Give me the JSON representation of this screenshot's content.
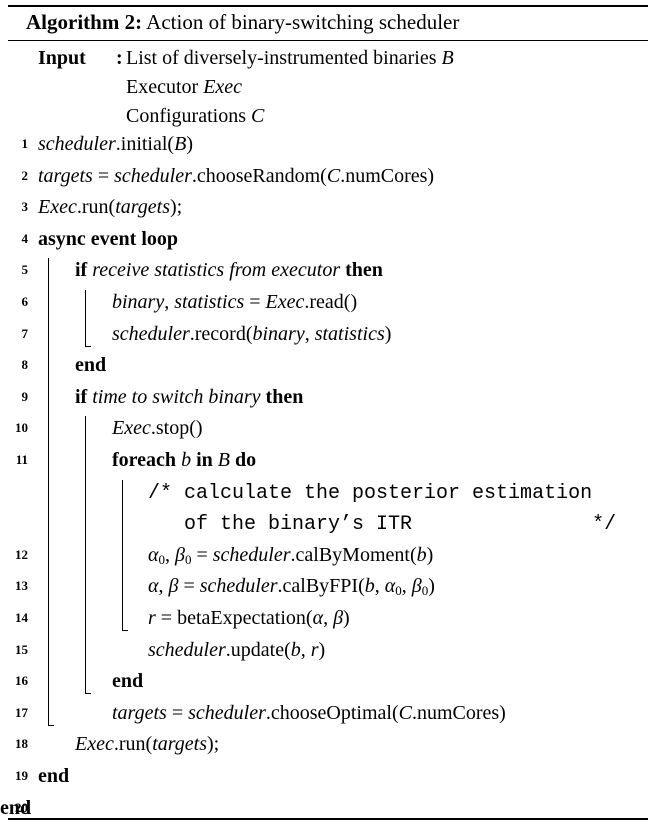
{
  "caption": {
    "label": "Algorithm 2:",
    "title": "Action of binary-switching scheduler"
  },
  "input": {
    "keyword": "Input",
    "colon": ":",
    "items": [
      {
        "text": "List of diversely-instrumented binaries ",
        "var": "B"
      },
      {
        "text": "Executor ",
        "var": "Exec"
      },
      {
        "text": "Configurations ",
        "var": "C"
      }
    ]
  },
  "lines": [
    {
      "n": "1",
      "parts": [
        {
          "t": "scheduler",
          "s": "i"
        },
        {
          "t": ".initial(",
          "s": ""
        },
        {
          "t": "B",
          "s": "i"
        },
        {
          "t": ")",
          "s": ""
        }
      ]
    },
    {
      "n": "2",
      "parts": [
        {
          "t": "targets",
          "s": "i"
        },
        {
          "t": " = ",
          "s": ""
        },
        {
          "t": "scheduler",
          "s": "i"
        },
        {
          "t": ".chooseRandom(",
          "s": ""
        },
        {
          "t": "C",
          "s": "i"
        },
        {
          "t": ".numCores)",
          "s": ""
        }
      ]
    },
    {
      "n": "3",
      "parts": [
        {
          "t": "Exec",
          "s": "i"
        },
        {
          "t": ".run(",
          "s": ""
        },
        {
          "t": "targets",
          "s": "i"
        },
        {
          "t": ");",
          "s": ""
        }
      ]
    },
    {
      "n": "4",
      "parts": [
        {
          "t": "async event loop",
          "s": "b"
        }
      ]
    },
    {
      "n": "5",
      "parts": [
        {
          "t": "if ",
          "s": "b"
        },
        {
          "t": "receive statistics from executor",
          "s": "i"
        },
        {
          "t": " then",
          "s": "b"
        }
      ]
    },
    {
      "n": "6",
      "parts": [
        {
          "t": "binary",
          "s": "i"
        },
        {
          "t": ", ",
          "s": ""
        },
        {
          "t": "statistics",
          "s": "i"
        },
        {
          "t": " = ",
          "s": ""
        },
        {
          "t": "Exec",
          "s": "i"
        },
        {
          "t": ".read()",
          "s": ""
        }
      ]
    },
    {
      "n": "7",
      "parts": [
        {
          "t": "scheduler",
          "s": "i"
        },
        {
          "t": ".record(",
          "s": ""
        },
        {
          "t": "binary",
          "s": "i"
        },
        {
          "t": ", ",
          "s": ""
        },
        {
          "t": "statistics",
          "s": "i"
        },
        {
          "t": ")",
          "s": ""
        }
      ]
    },
    {
      "n": "8",
      "parts": [
        {
          "t": "end",
          "s": "b"
        }
      ]
    },
    {
      "n": "9",
      "parts": [
        {
          "t": "if ",
          "s": "b"
        },
        {
          "t": "time to switch binary",
          "s": "i"
        },
        {
          "t": " then",
          "s": "b"
        }
      ]
    },
    {
      "n": "10",
      "parts": [
        {
          "t": "Exec",
          "s": "i"
        },
        {
          "t": ".stop()",
          "s": ""
        }
      ]
    },
    {
      "n": "11",
      "parts": [
        {
          "t": "foreach ",
          "s": "b"
        },
        {
          "t": "b",
          "s": "i"
        },
        {
          "t": " in ",
          "s": "b"
        },
        {
          "t": "B",
          "s": "i"
        },
        {
          "t": " do",
          "s": "b"
        }
      ]
    },
    {
      "n": "",
      "parts": [
        {
          "t": "/* calculate the posterior estimation",
          "s": "mono"
        }
      ]
    },
    {
      "n": "",
      "parts": [
        {
          "t": "   of the binary’s ITR               */",
          "s": "mono"
        }
      ]
    },
    {
      "n": "12",
      "parts": [
        {
          "t": "α",
          "s": "i"
        },
        {
          "t": "0",
          "s": "sub"
        },
        {
          "t": ", ",
          "s": ""
        },
        {
          "t": "β",
          "s": "i"
        },
        {
          "t": "0",
          "s": "sub"
        },
        {
          "t": " = ",
          "s": ""
        },
        {
          "t": "scheduler",
          "s": "i"
        },
        {
          "t": ".calByMoment(",
          "s": ""
        },
        {
          "t": "b",
          "s": "i"
        },
        {
          "t": ")",
          "s": ""
        }
      ]
    },
    {
      "n": "13",
      "parts": [
        {
          "t": "α",
          "s": "i"
        },
        {
          "t": ", ",
          "s": ""
        },
        {
          "t": "β",
          "s": "i"
        },
        {
          "t": " = ",
          "s": ""
        },
        {
          "t": "scheduler",
          "s": "i"
        },
        {
          "t": ".calByFPI(",
          "s": ""
        },
        {
          "t": "b",
          "s": "i"
        },
        {
          "t": ", ",
          "s": ""
        },
        {
          "t": "α",
          "s": "i"
        },
        {
          "t": "0",
          "s": "sub"
        },
        {
          "t": ", ",
          "s": ""
        },
        {
          "t": "β",
          "s": "i"
        },
        {
          "t": "0",
          "s": "sub"
        },
        {
          "t": ")",
          "s": ""
        }
      ]
    },
    {
      "n": "14",
      "parts": [
        {
          "t": "r",
          "s": "i"
        },
        {
          "t": " = betaExpectation(",
          "s": ""
        },
        {
          "t": "α",
          "s": "i"
        },
        {
          "t": ", ",
          "s": ""
        },
        {
          "t": "β",
          "s": "i"
        },
        {
          "t": ")",
          "s": ""
        }
      ]
    },
    {
      "n": "15",
      "parts": [
        {
          "t": "scheduler",
          "s": "i"
        },
        {
          "t": ".update(",
          "s": ""
        },
        {
          "t": "b",
          "s": "i"
        },
        {
          "t": ", ",
          "s": ""
        },
        {
          "t": "r",
          "s": "i"
        },
        {
          "t": ")",
          "s": ""
        }
      ]
    },
    {
      "n": "16",
      "parts": [
        {
          "t": "end",
          "s": "b"
        }
      ]
    },
    {
      "n": "17",
      "parts": [
        {
          "t": "targets",
          "s": "i"
        },
        {
          "t": " = ",
          "s": ""
        },
        {
          "t": "scheduler",
          "s": "i"
        },
        {
          "t": ".chooseOptimal(",
          "s": ""
        },
        {
          "t": "C",
          "s": "i"
        },
        {
          "t": ".numCores)",
          "s": ""
        }
      ]
    },
    {
      "n": "18",
      "parts": [
        {
          "t": "Exec",
          "s": "i"
        },
        {
          "t": ".run(",
          "s": ""
        },
        {
          "t": "targets",
          "s": "i"
        },
        {
          "t": ");",
          "s": ""
        }
      ]
    },
    {
      "n": "19",
      "parts": [
        {
          "t": "end",
          "s": "b"
        }
      ]
    },
    {
      "n": "20",
      "parts": [
        {
          "t": "end",
          "s": "b"
        }
      ]
    }
  ]
}
